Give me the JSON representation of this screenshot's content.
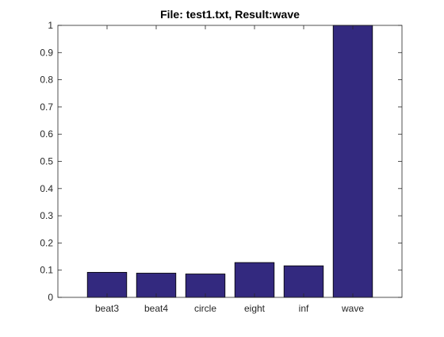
{
  "chart_data": {
    "type": "bar",
    "title": "File: test1.txt, Result:wave",
    "xlabel": "",
    "ylabel": "",
    "categories": [
      "beat3",
      "beat4",
      "circle",
      "eight",
      "inf",
      "wave"
    ],
    "values": [
      0.092,
      0.089,
      0.086,
      0.128,
      0.116,
      1.0
    ],
    "ylim": [
      0,
      1
    ],
    "yticks": [
      "0",
      "0.1",
      "0.2",
      "0.3",
      "0.4",
      "0.5",
      "0.6",
      "0.7",
      "0.8",
      "0.9",
      "1"
    ],
    "bar_color": "#33297f",
    "grid": false,
    "legend": "none"
  }
}
